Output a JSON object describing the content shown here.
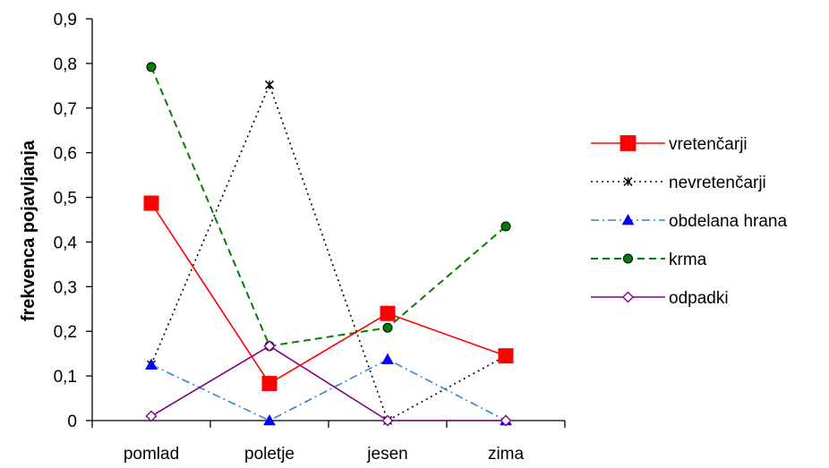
{
  "chart_data": {
    "type": "line",
    "title": "",
    "xlabel": "",
    "ylabel": "frekvenca pojavljanja",
    "categories": [
      "pomlad",
      "poletje",
      "jesen",
      "zima"
    ],
    "ylim": [
      0,
      0.9
    ],
    "yticks": [
      0,
      0.1,
      0.2,
      0.3,
      0.4,
      0.5,
      0.6,
      0.7,
      0.8,
      0.9
    ],
    "ytick_labels": [
      "0",
      "0,1",
      "0,2",
      "0,3",
      "0,4",
      "0,5",
      "0,6",
      "0,7",
      "0,8",
      "0,9"
    ],
    "grid": false,
    "legend_position": "right",
    "series": [
      {
        "name": "vretenčarji",
        "values": [
          0.487,
          0.083,
          0.24,
          0.145
        ],
        "color": "#ff0000",
        "dash": "solid",
        "marker": "square-filled"
      },
      {
        "name": "nevretenčarji",
        "values": [
          0.125,
          0.752,
          0.0,
          0.145
        ],
        "color": "#000000",
        "dash": "dotted",
        "marker": "star"
      },
      {
        "name": "obdelana hrana",
        "values": [
          0.125,
          0.0,
          0.137,
          0.0
        ],
        "color": "#3a7fd5",
        "dash": "dash-dot",
        "marker": "triangle-filled"
      },
      {
        "name": "krma",
        "values": [
          0.792,
          0.167,
          0.208,
          0.435
        ],
        "color": "#008000",
        "dash": "dashed",
        "marker": "circle-filled"
      },
      {
        "name": "odpadki",
        "values": [
          0.01,
          0.167,
          0.0,
          0.0
        ],
        "color": "#800080",
        "dash": "solid",
        "marker": "diamond-open"
      }
    ]
  }
}
